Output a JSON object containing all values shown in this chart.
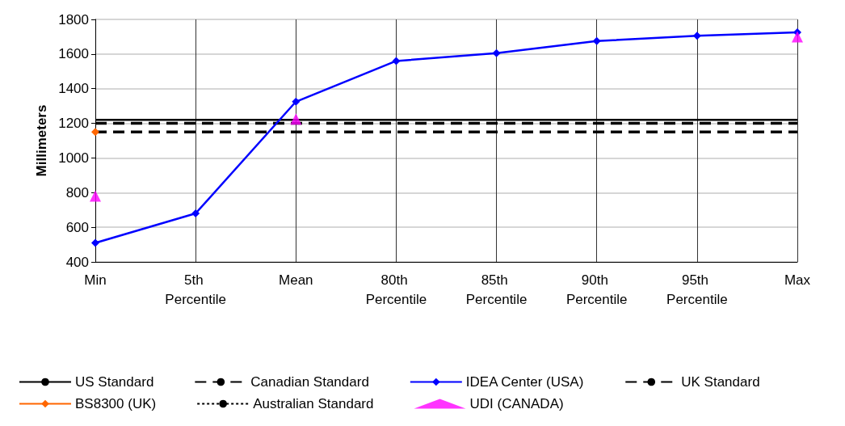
{
  "chart_data": {
    "type": "line",
    "ylabel": "Millimeters",
    "categories": [
      "Min",
      "5th Percentile",
      "Mean",
      "80th Percentile",
      "85th Percentile",
      "90th Percentile",
      "95th Percentile",
      "Max"
    ],
    "ylim": [
      400,
      1800
    ],
    "yticks": [
      400,
      600,
      800,
      1000,
      1200,
      1400,
      1600,
      1800
    ],
    "grid": true,
    "legend": "bottom",
    "series": [
      {
        "name": "US Standard",
        "color": "#000000",
        "marker": "none",
        "line_style": "solid",
        "values": [
          1220,
          1220,
          1220,
          1220,
          1220,
          1220,
          1220,
          1220
        ]
      },
      {
        "name": "Canadian Standard",
        "color": "#000000",
        "marker": "none",
        "line_style": "dashed",
        "values": [
          1200,
          1200,
          1200,
          1200,
          1200,
          1200,
          1200,
          1200
        ]
      },
      {
        "name": "IDEA Center (USA)",
        "color": "#0000ff",
        "marker": "diamond",
        "line_style": "solid",
        "values": [
          510,
          680,
          1325,
          1560,
          1605,
          1675,
          1705,
          1725
        ]
      },
      {
        "name": "UK Standard",
        "color": "#000000",
        "marker": "none",
        "line_style": "dashed",
        "values": [
          1150,
          1150,
          1150,
          1150,
          1150,
          1150,
          1150,
          1150
        ]
      },
      {
        "name": "BS8300 (UK)",
        "color": "#ff6600",
        "marker": "diamond",
        "line_style": "solid",
        "values": [
          1150,
          null,
          null,
          null,
          null,
          null,
          null,
          null
        ]
      },
      {
        "name": "Australian Standard",
        "color": "#000000",
        "marker": "none",
        "line_style": "dotted",
        "values": [
          null,
          null,
          null,
          null,
          null,
          null,
          null,
          null
        ]
      },
      {
        "name": "UDI (CANADA)",
        "type": "scatter",
        "color": "#ff00ff",
        "marker": "triangle",
        "values": [
          780,
          null,
          1225,
          null,
          null,
          null,
          null,
          1700
        ]
      }
    ]
  }
}
